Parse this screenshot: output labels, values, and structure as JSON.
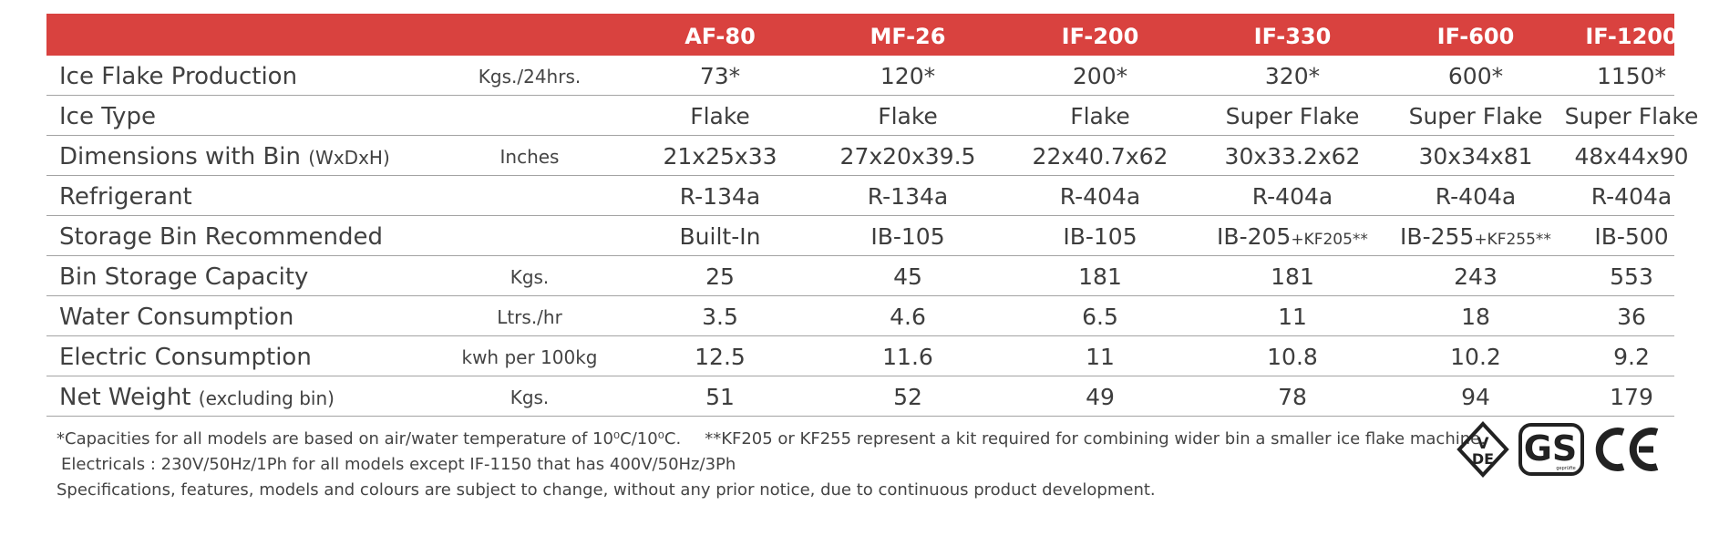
{
  "models": [
    "AF-80",
    "MF-26",
    "IF-200",
    "IF-330",
    "IF-600",
    "IF-1200"
  ],
  "rows": [
    {
      "label": "Ice Flake Production",
      "label_sub": "",
      "unit": "Kgs./24hrs.",
      "values": [
        "73*",
        "120*",
        "200*",
        "320*",
        "600*",
        "1150*"
      ]
    },
    {
      "label": "Ice Type",
      "label_sub": "",
      "unit": "",
      "values": [
        "Flake",
        "Flake",
        "Flake",
        "Super Flake",
        "Super Flake",
        "Super Flake"
      ]
    },
    {
      "label": "Dimensions with Bin",
      "label_sub": "(WxDxH)",
      "unit": "Inches",
      "values": [
        "21x25x33",
        "27x20x39.5",
        "22x40.7x62",
        "30x33.2x62",
        "30x34x81",
        "48x44x90"
      ]
    },
    {
      "label": "Refrigerant",
      "label_sub": "",
      "unit": "",
      "values": [
        "R-134a",
        "R-134a",
        "R-404a",
        "R-404a",
        "R-404a",
        "R-404a"
      ]
    },
    {
      "label": "Storage Bin Recommended",
      "label_sub": "",
      "unit": "",
      "values": [
        "Built-In",
        "IB-105",
        "IB-105",
        "IB-205",
        "IB-255",
        "IB-500"
      ],
      "kits": [
        "",
        "",
        "",
        "+KF205**",
        "+KF255**",
        ""
      ]
    },
    {
      "label": "Bin Storage Capacity",
      "label_sub": "",
      "unit": "Kgs.",
      "values": [
        "25",
        "45",
        "181",
        "181",
        "243",
        "553"
      ]
    },
    {
      "label": "Water Consumption",
      "label_sub": "",
      "unit": "Ltrs./hr",
      "values": [
        "3.5",
        "4.6",
        "6.5",
        "11",
        "18",
        "36"
      ]
    },
    {
      "label": "Electric Consumption",
      "label_sub": "",
      "unit": "kwh per 100kg",
      "values": [
        "12.5",
        "11.6",
        "11",
        "10.8",
        "10.2",
        "9.2"
      ]
    },
    {
      "label": "Net Weight",
      "label_sub": "(excluding bin)",
      "unit": "Kgs.",
      "values": [
        "51",
        "52",
        "49",
        "78",
        "94",
        "179"
      ]
    }
  ],
  "notes": {
    "capacities": "*Capacities for all models are based on air/water temperature of 10⁰C/10⁰C.",
    "kit": "**KF205 or KF255 represent a kit required for combining wider bin a smaller ice flake machine.",
    "electricals": "Electricals : 230V/50Hz/1Ph for all models except IF-1150 that has 400V/50Hz/3Ph",
    "specs": "Specifications, features, models and colours are subject to change, without any prior notice, due to continuous product development."
  },
  "logos": {
    "vde": "VDE",
    "gs": "GS",
    "gs_small": "geprüfte Sicherheit",
    "ce": "CE"
  },
  "colors": {
    "header_bg": "#d9423f",
    "header_text": "#ffffff",
    "row_rule": "#a3a3a3",
    "body_text": "#3d3d3d"
  }
}
